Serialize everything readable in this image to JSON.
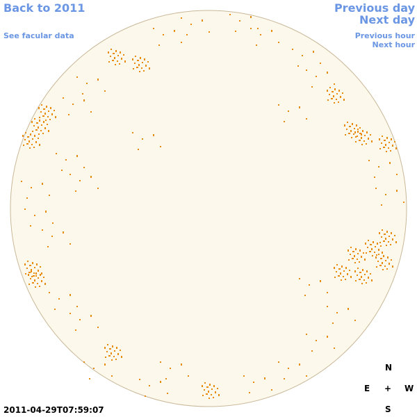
{
  "navigation": {
    "back": "Back to 2011",
    "facular": "See facular data",
    "previous_day": "Previous day",
    "next_day": "Next day",
    "previous_hour": "Previous hour",
    "next_hour": "Next hour"
  },
  "timestamp": "2011-04-29T07:59:07",
  "compass": {
    "north": "N",
    "east": "E",
    "center": "+",
    "west": "W",
    "south": "S"
  }
}
